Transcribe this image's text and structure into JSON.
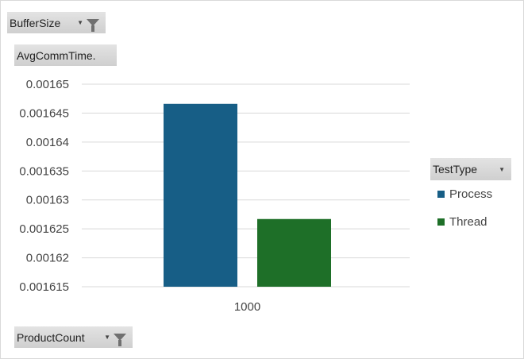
{
  "filters": {
    "report_filter": "BufferSize",
    "values_field": "AvgCommTime.",
    "axis_field": "ProductCount",
    "legend_field": "TestType"
  },
  "icons": {
    "filter": "funnel-icon",
    "dropdown": "caret-down-icon"
  },
  "chart_data": {
    "type": "bar",
    "categories": [
      "1000"
    ],
    "series": [
      {
        "name": "Process",
        "values": [
          0.0016466
        ],
        "color": "#175E86"
      },
      {
        "name": "Thread",
        "values": [
          0.0016267
        ],
        "color": "#1E6F28"
      }
    ],
    "ylim": [
      0.001615,
      0.00165
    ],
    "yticks": [
      "0.00165",
      "0.001645",
      "0.00164",
      "0.001635",
      "0.00163",
      "0.001625",
      "0.00162",
      "0.001615"
    ],
    "grid": true,
    "legend_position": "right"
  }
}
